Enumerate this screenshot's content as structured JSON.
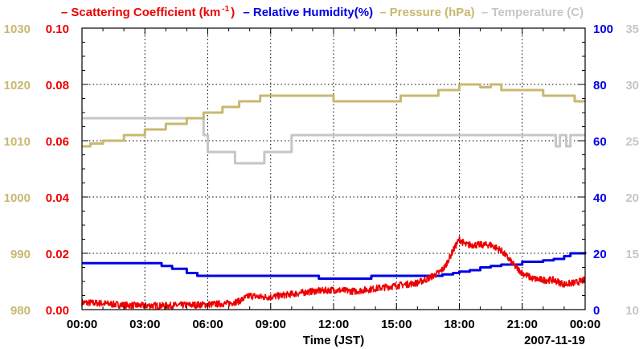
{
  "colors": {
    "scattering": "#ee0000",
    "humidity": "#0000e6",
    "pressure": "#c8b870",
    "temperature": "#c6c6c6",
    "axis": "#000000",
    "grid": "#000000"
  },
  "legend": {
    "scattering_prefix": "– Scattering Coefficient (km",
    "scattering_sup": "-1",
    "scattering_suffix": ")",
    "humidity": "– Relative Humidity(%)",
    "pressure": "– Pressure (hPa)",
    "temperature": "– Temperature (C)"
  },
  "chart_data": {
    "type": "line",
    "xlabel": "Time (JST)",
    "date_label": "2007-11-19",
    "x_range_hours": [
      0,
      24
    ],
    "x_ticks": [
      {
        "h": 0,
        "label": "00:00"
      },
      {
        "h": 3,
        "label": "03:00"
      },
      {
        "h": 6,
        "label": "06:00"
      },
      {
        "h": 9,
        "label": "09:00"
      },
      {
        "h": 12,
        "label": "12:00"
      },
      {
        "h": 15,
        "label": "15:00"
      },
      {
        "h": 18,
        "label": "18:00"
      },
      {
        "h": 21,
        "label": "21:00"
      },
      {
        "h": 24,
        "label": "00:00"
      }
    ],
    "axes": {
      "pressure": {
        "range": [
          980,
          1030
        ],
        "ticks": [
          "980",
          "990",
          "1000",
          "1010",
          "1020",
          "1030"
        ]
      },
      "scattering": {
        "range": [
          0,
          0.1
        ],
        "ticks": [
          "0.00",
          "0.02",
          "0.04",
          "0.06",
          "0.08",
          "0.10"
        ]
      },
      "humidity": {
        "range": [
          0,
          100
        ],
        "ticks": [
          "0",
          "20",
          "40",
          "60",
          "80",
          "100"
        ]
      },
      "temperature": {
        "range": [
          10,
          35
        ],
        "ticks": [
          "10",
          "15",
          "20",
          "25",
          "30",
          "35"
        ]
      }
    },
    "series": [
      {
        "name": "Scattering Coefficient (km-1)",
        "axis": "scattering",
        "noise": 0.0012,
        "points": [
          [
            0,
            0.0025
          ],
          [
            1,
            0.0022
          ],
          [
            2,
            0.0016
          ],
          [
            3,
            0.0014
          ],
          [
            4,
            0.0014
          ],
          [
            5,
            0.0016
          ],
          [
            6,
            0.0018
          ],
          [
            7,
            0.0022
          ],
          [
            7.5,
            0.003
          ],
          [
            8,
            0.005
          ],
          [
            8.5,
            0.0045
          ],
          [
            9,
            0.0045
          ],
          [
            10,
            0.0055
          ],
          [
            11,
            0.0065
          ],
          [
            12,
            0.007
          ],
          [
            13,
            0.0065
          ],
          [
            14,
            0.0075
          ],
          [
            15,
            0.0085
          ],
          [
            16,
            0.0095
          ],
          [
            16.5,
            0.011
          ],
          [
            17,
            0.013
          ],
          [
            17.3,
            0.015
          ],
          [
            17.7,
            0.021
          ],
          [
            18,
            0.025
          ],
          [
            18.3,
            0.023
          ],
          [
            19,
            0.023
          ],
          [
            19.5,
            0.023
          ],
          [
            20,
            0.021
          ],
          [
            20.3,
            0.0185
          ],
          [
            20.7,
            0.015
          ],
          [
            21,
            0.013
          ],
          [
            21.5,
            0.011
          ],
          [
            22,
            0.0105
          ],
          [
            22.5,
            0.0105
          ],
          [
            23,
            0.009
          ],
          [
            23.5,
            0.0095
          ],
          [
            24,
            0.0105
          ]
        ]
      },
      {
        "name": "Relative Humidity(%)",
        "axis": "humidity",
        "step": true,
        "points": [
          [
            0,
            16.5
          ],
          [
            3.5,
            16.5
          ],
          [
            3.8,
            15.5
          ],
          [
            4.3,
            14.5
          ],
          [
            5,
            13
          ],
          [
            5.5,
            12
          ],
          [
            6,
            12
          ],
          [
            6.5,
            12
          ],
          [
            9,
            12
          ],
          [
            10,
            12
          ],
          [
            11.3,
            11
          ],
          [
            13.2,
            11
          ],
          [
            13.8,
            12
          ],
          [
            16.5,
            12
          ],
          [
            17.2,
            12.5
          ],
          [
            17.7,
            13
          ],
          [
            18,
            13.5
          ],
          [
            18.5,
            14
          ],
          [
            19,
            15
          ],
          [
            19.5,
            15.5
          ],
          [
            20,
            16
          ],
          [
            21,
            17
          ],
          [
            21.5,
            17
          ],
          [
            22,
            17.5
          ],
          [
            22.5,
            18
          ],
          [
            23,
            19
          ],
          [
            23.3,
            20
          ],
          [
            24,
            20.5
          ]
        ]
      },
      {
        "name": "Pressure (hPa)",
        "axis": "pressure",
        "step": true,
        "points": [
          [
            0,
            1009
          ],
          [
            0.4,
            1009.5
          ],
          [
            1,
            1010
          ],
          [
            2,
            1011
          ],
          [
            3,
            1012
          ],
          [
            4,
            1013
          ],
          [
            5,
            1014
          ],
          [
            5.8,
            1015
          ],
          [
            6.7,
            1016
          ],
          [
            7.5,
            1017
          ],
          [
            8.5,
            1018
          ],
          [
            12,
            1017
          ],
          [
            15,
            1017
          ],
          [
            15.2,
            1018
          ],
          [
            17,
            1019
          ],
          [
            18,
            1020
          ],
          [
            19,
            1019.5
          ],
          [
            19.5,
            1020
          ],
          [
            20,
            1019
          ],
          [
            22,
            1018
          ],
          [
            23.5,
            1017
          ],
          [
            24,
            1017
          ]
        ]
      },
      {
        "name": "Temperature (C)",
        "axis": "temperature",
        "step": true,
        "points": [
          [
            0,
            27
          ],
          [
            5.5,
            27
          ],
          [
            5.8,
            25.5
          ],
          [
            6,
            24
          ],
          [
            7,
            24
          ],
          [
            7.3,
            23
          ],
          [
            8.5,
            23
          ],
          [
            8.7,
            24
          ],
          [
            9,
            24
          ],
          [
            9.8,
            24
          ],
          [
            10,
            25.5
          ],
          [
            22.5,
            25.5
          ],
          [
            22.6,
            24.5
          ],
          [
            22.8,
            25.5
          ],
          [
            23,
            25.5
          ],
          [
            23.1,
            24.5
          ],
          [
            23.3,
            25.5
          ],
          [
            24,
            25.5
          ]
        ]
      }
    ]
  }
}
